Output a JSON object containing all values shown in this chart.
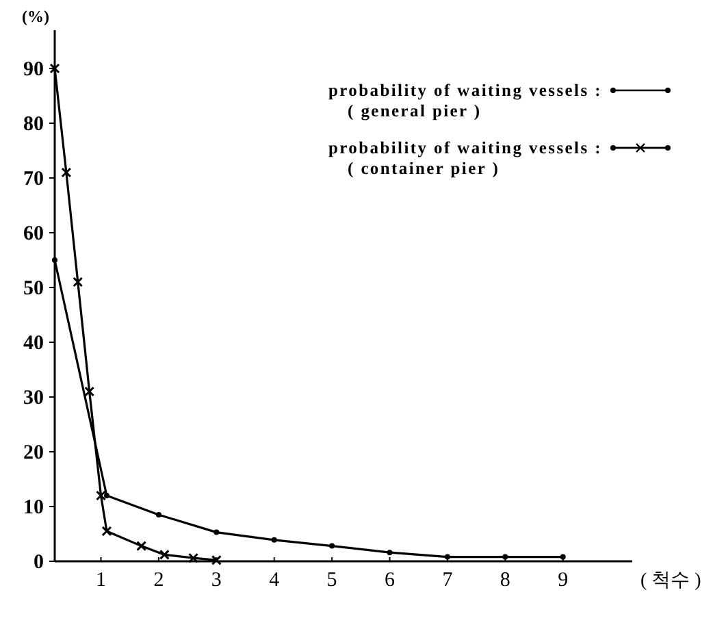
{
  "chart_data": {
    "type": "line",
    "ylabel": "(%)",
    "xlabel": "( 척수 )",
    "xlim": [
      0.2,
      10.2
    ],
    "ylim": [
      0,
      97
    ],
    "xticks": [
      1,
      2,
      3,
      4,
      5,
      6,
      7,
      8,
      9
    ],
    "yticks": [
      0,
      10,
      20,
      30,
      40,
      50,
      60,
      70,
      80,
      90
    ],
    "grid": false,
    "legend": "top right",
    "line_style": "solid",
    "series": [
      {
        "name": "probability of waiting vessels :\n( general pier )",
        "color": "#000000",
        "marker": "circle",
        "x": [
          0.2,
          1.1,
          2,
          3,
          4,
          5,
          6,
          7,
          8,
          9
        ],
        "values": [
          55,
          12,
          8.5,
          5.3,
          3.9,
          2.8,
          1.6,
          0.8,
          0.8,
          0.8
        ]
      },
      {
        "name": "probability of waiting vessels :\n( container pier )",
        "color": "#000000",
        "marker": "cross",
        "x": [
          0.2,
          0.4,
          0.6,
          0.8,
          1.0,
          1.1,
          1.7,
          2.1,
          2.6,
          3
        ],
        "values": [
          90,
          71,
          51,
          31,
          12,
          5.5,
          2.8,
          1.2,
          0.6,
          0.2
        ]
      }
    ]
  }
}
